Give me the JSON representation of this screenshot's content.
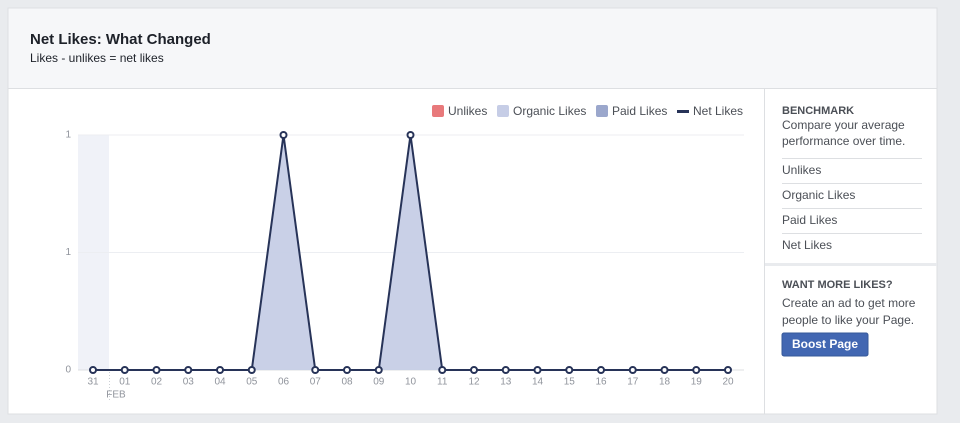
{
  "header": {
    "title": "Net Likes: What Changed",
    "subtitle": "Likes - unlikes = net likes"
  },
  "chart_data": {
    "type": "area_line",
    "categories": [
      "31",
      "01",
      "02",
      "03",
      "04",
      "05",
      "06",
      "07",
      "08",
      "09",
      "10",
      "11",
      "12",
      "13",
      "14",
      "15",
      "16",
      "17",
      "18",
      "19",
      "20"
    ],
    "annotations": [
      "FEB"
    ],
    "series": [
      {
        "name": "Unlikes",
        "color": "#e8797b",
        "kind": "area",
        "values": [
          0,
          0,
          0,
          0,
          0,
          0,
          0,
          0,
          0,
          0,
          0,
          0,
          0,
          0,
          0,
          0,
          0,
          0,
          0,
          0,
          0
        ]
      },
      {
        "name": "Organic Likes",
        "color": "#c6cde6",
        "kind": "area",
        "values": [
          0,
          0,
          0,
          0,
          0,
          0,
          1,
          0,
          0,
          0,
          1,
          0,
          0,
          0,
          0,
          0,
          0,
          0,
          0,
          0,
          0
        ]
      },
      {
        "name": "Paid Likes",
        "color": "#9ba7cc",
        "kind": "area",
        "values": [
          0,
          0,
          0,
          0,
          0,
          0,
          0,
          0,
          0,
          0,
          0,
          0,
          0,
          0,
          0,
          0,
          0,
          0,
          0,
          0,
          0
        ]
      },
      {
        "name": "Net Likes",
        "color": "#273358",
        "kind": "line",
        "values": [
          0,
          0,
          0,
          0,
          0,
          0,
          1,
          0,
          0,
          0,
          1,
          0,
          0,
          0,
          0,
          0,
          0,
          0,
          0,
          0,
          0
        ]
      }
    ],
    "ylim": [
      0,
      1
    ],
    "yticks": [
      0,
      {
        "value": 0.5,
        "label": "1"
      },
      1
    ],
    "grid": true,
    "legend": "top-right"
  },
  "sidebar": {
    "benchmark": {
      "title": "BENCHMARK",
      "description": [
        "Compare your average",
        "performance over time."
      ],
      "links": [
        "Unlikes",
        "Organic Likes",
        "Paid Likes",
        "Net Likes"
      ]
    },
    "promo": {
      "title": "WANT MORE LIKES?",
      "description": [
        "Create an ad to get more",
        "people to like your Page."
      ],
      "button": "Boost Page"
    }
  }
}
